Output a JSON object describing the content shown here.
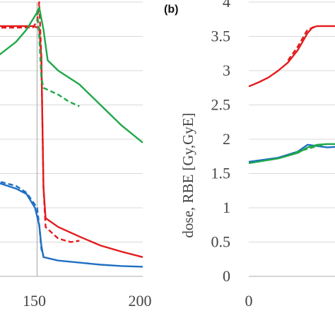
{
  "chart_data": [
    {
      "panel": "a",
      "type": "line",
      "xlim": [
        100,
        200
      ],
      "ylim": [
        0,
        4
      ],
      "x_ticks": [
        "150",
        "200"
      ],
      "grid": true,
      "vline_x": 150,
      "colors": {
        "red": "#e41a1c",
        "green": "#1fa84a",
        "blue": "#1f6fc4"
      },
      "series": [
        {
          "color": "red",
          "style": "solid",
          "points": [
            [
              100,
              3.65
            ],
            [
              148,
              3.65
            ],
            [
              151,
              3.62
            ],
            [
              152,
              3.2
            ],
            [
              153,
              1.3
            ],
            [
              154,
              0.85
            ],
            [
              160,
              0.72
            ],
            [
              170,
              0.58
            ],
            [
              180,
              0.45
            ],
            [
              190,
              0.36
            ],
            [
              200,
              0.28
            ]
          ]
        },
        {
          "color": "red",
          "style": "dashed",
          "points": [
            [
              100,
              3.62
            ],
            [
              148,
              3.63
            ],
            [
              150,
              3.72
            ],
            [
              151,
              4.0
            ],
            [
              152,
              3.2
            ],
            [
              153,
              1.3
            ],
            [
              154,
              0.72
            ],
            [
              160,
              0.55
            ],
            [
              166,
              0.5
            ],
            [
              170,
              0.52
            ]
          ]
        },
        {
          "color": "green",
          "style": "solid",
          "points": [
            [
              100,
              2.55
            ],
            [
              110,
              2.75
            ],
            [
              120,
              2.95
            ],
            [
              130,
              3.18
            ],
            [
              140,
              3.42
            ],
            [
              145,
              3.6
            ],
            [
              150,
              3.85
            ],
            [
              151,
              3.92
            ],
            [
              153,
              3.6
            ],
            [
              155,
              3.15
            ],
            [
              160,
              3.0
            ],
            [
              170,
              2.8
            ],
            [
              180,
              2.5
            ],
            [
              190,
              2.2
            ],
            [
              200,
              1.95
            ]
          ]
        },
        {
          "color": "green",
          "style": "dashed",
          "points": [
            [
              150,
              3.88
            ],
            [
              151,
              3.5
            ],
            [
              152,
              2.9
            ],
            [
              153,
              2.75
            ],
            [
              160,
              2.65
            ],
            [
              165,
              2.55
            ],
            [
              170,
              2.48
            ]
          ]
        },
        {
          "color": "blue",
          "style": "solid",
          "points": [
            [
              100,
              1.5
            ],
            [
              120,
              1.44
            ],
            [
              130,
              1.38
            ],
            [
              140,
              1.28
            ],
            [
              145,
              1.2
            ],
            [
              149,
              1.0
            ],
            [
              151,
              0.75
            ],
            [
              152,
              0.45
            ],
            [
              153,
              0.28
            ],
            [
              160,
              0.23
            ],
            [
              170,
              0.2
            ],
            [
              180,
              0.17
            ],
            [
              190,
              0.15
            ],
            [
              200,
              0.14
            ]
          ]
        },
        {
          "color": "blue",
          "style": "dashed",
          "points": [
            [
              100,
              1.5
            ],
            [
              120,
              1.45
            ],
            [
              130,
              1.4
            ],
            [
              140,
              1.32
            ],
            [
              145,
              1.22
            ],
            [
              150,
              1.0
            ],
            [
              151,
              0.75
            ],
            [
              152,
              0.4
            ],
            [
              153,
              0.3
            ]
          ]
        }
      ]
    },
    {
      "panel": "b",
      "panel_label": "(b)",
      "type": "line",
      "xlim": [
        0,
        15
      ],
      "ylim": [
        0,
        4
      ],
      "x_ticks": [
        "0"
      ],
      "y_ticks": [
        "0",
        "0.5",
        "1",
        "1.5",
        "2",
        "2.5",
        "3",
        "3.5",
        "4"
      ],
      "ylabel": "dose, RBE [Gy,GyE]",
      "grid": true,
      "series": [
        {
          "color": "red",
          "style": "solid",
          "points": [
            [
              0,
              2.77
            ],
            [
              1,
              2.83
            ],
            [
              2,
              2.9
            ],
            [
              3,
              3.0
            ],
            [
              4,
              3.12
            ],
            [
              5,
              3.3
            ],
            [
              6,
              3.55
            ],
            [
              6.5,
              3.63
            ],
            [
              7,
              3.65
            ],
            [
              10,
              3.65
            ]
          ]
        },
        {
          "color": "red",
          "style": "dashed",
          "points": [
            [
              4,
              3.15
            ],
            [
              5,
              3.35
            ],
            [
              6,
              3.6
            ],
            [
              7,
              3.65
            ]
          ]
        },
        {
          "color": "blue",
          "style": "solid",
          "points": [
            [
              0,
              1.67
            ],
            [
              3,
              1.73
            ],
            [
              5,
              1.82
            ],
            [
              6,
              1.92
            ],
            [
              7,
              1.9
            ],
            [
              8,
              1.88
            ],
            [
              10,
              1.9
            ]
          ]
        },
        {
          "color": "green",
          "style": "solid",
          "points": [
            [
              0,
              1.65
            ],
            [
              3,
              1.72
            ],
            [
              5,
              1.8
            ],
            [
              6,
              1.88
            ],
            [
              7,
              1.92
            ],
            [
              8,
              1.93
            ],
            [
              10,
              1.93
            ]
          ]
        },
        {
          "color": "green",
          "style": "dashed",
          "points": [
            [
              4,
              1.76
            ],
            [
              5,
              1.82
            ],
            [
              6,
              1.86
            ],
            [
              7,
              1.9
            ],
            [
              8,
              1.93
            ]
          ]
        }
      ]
    }
  ]
}
